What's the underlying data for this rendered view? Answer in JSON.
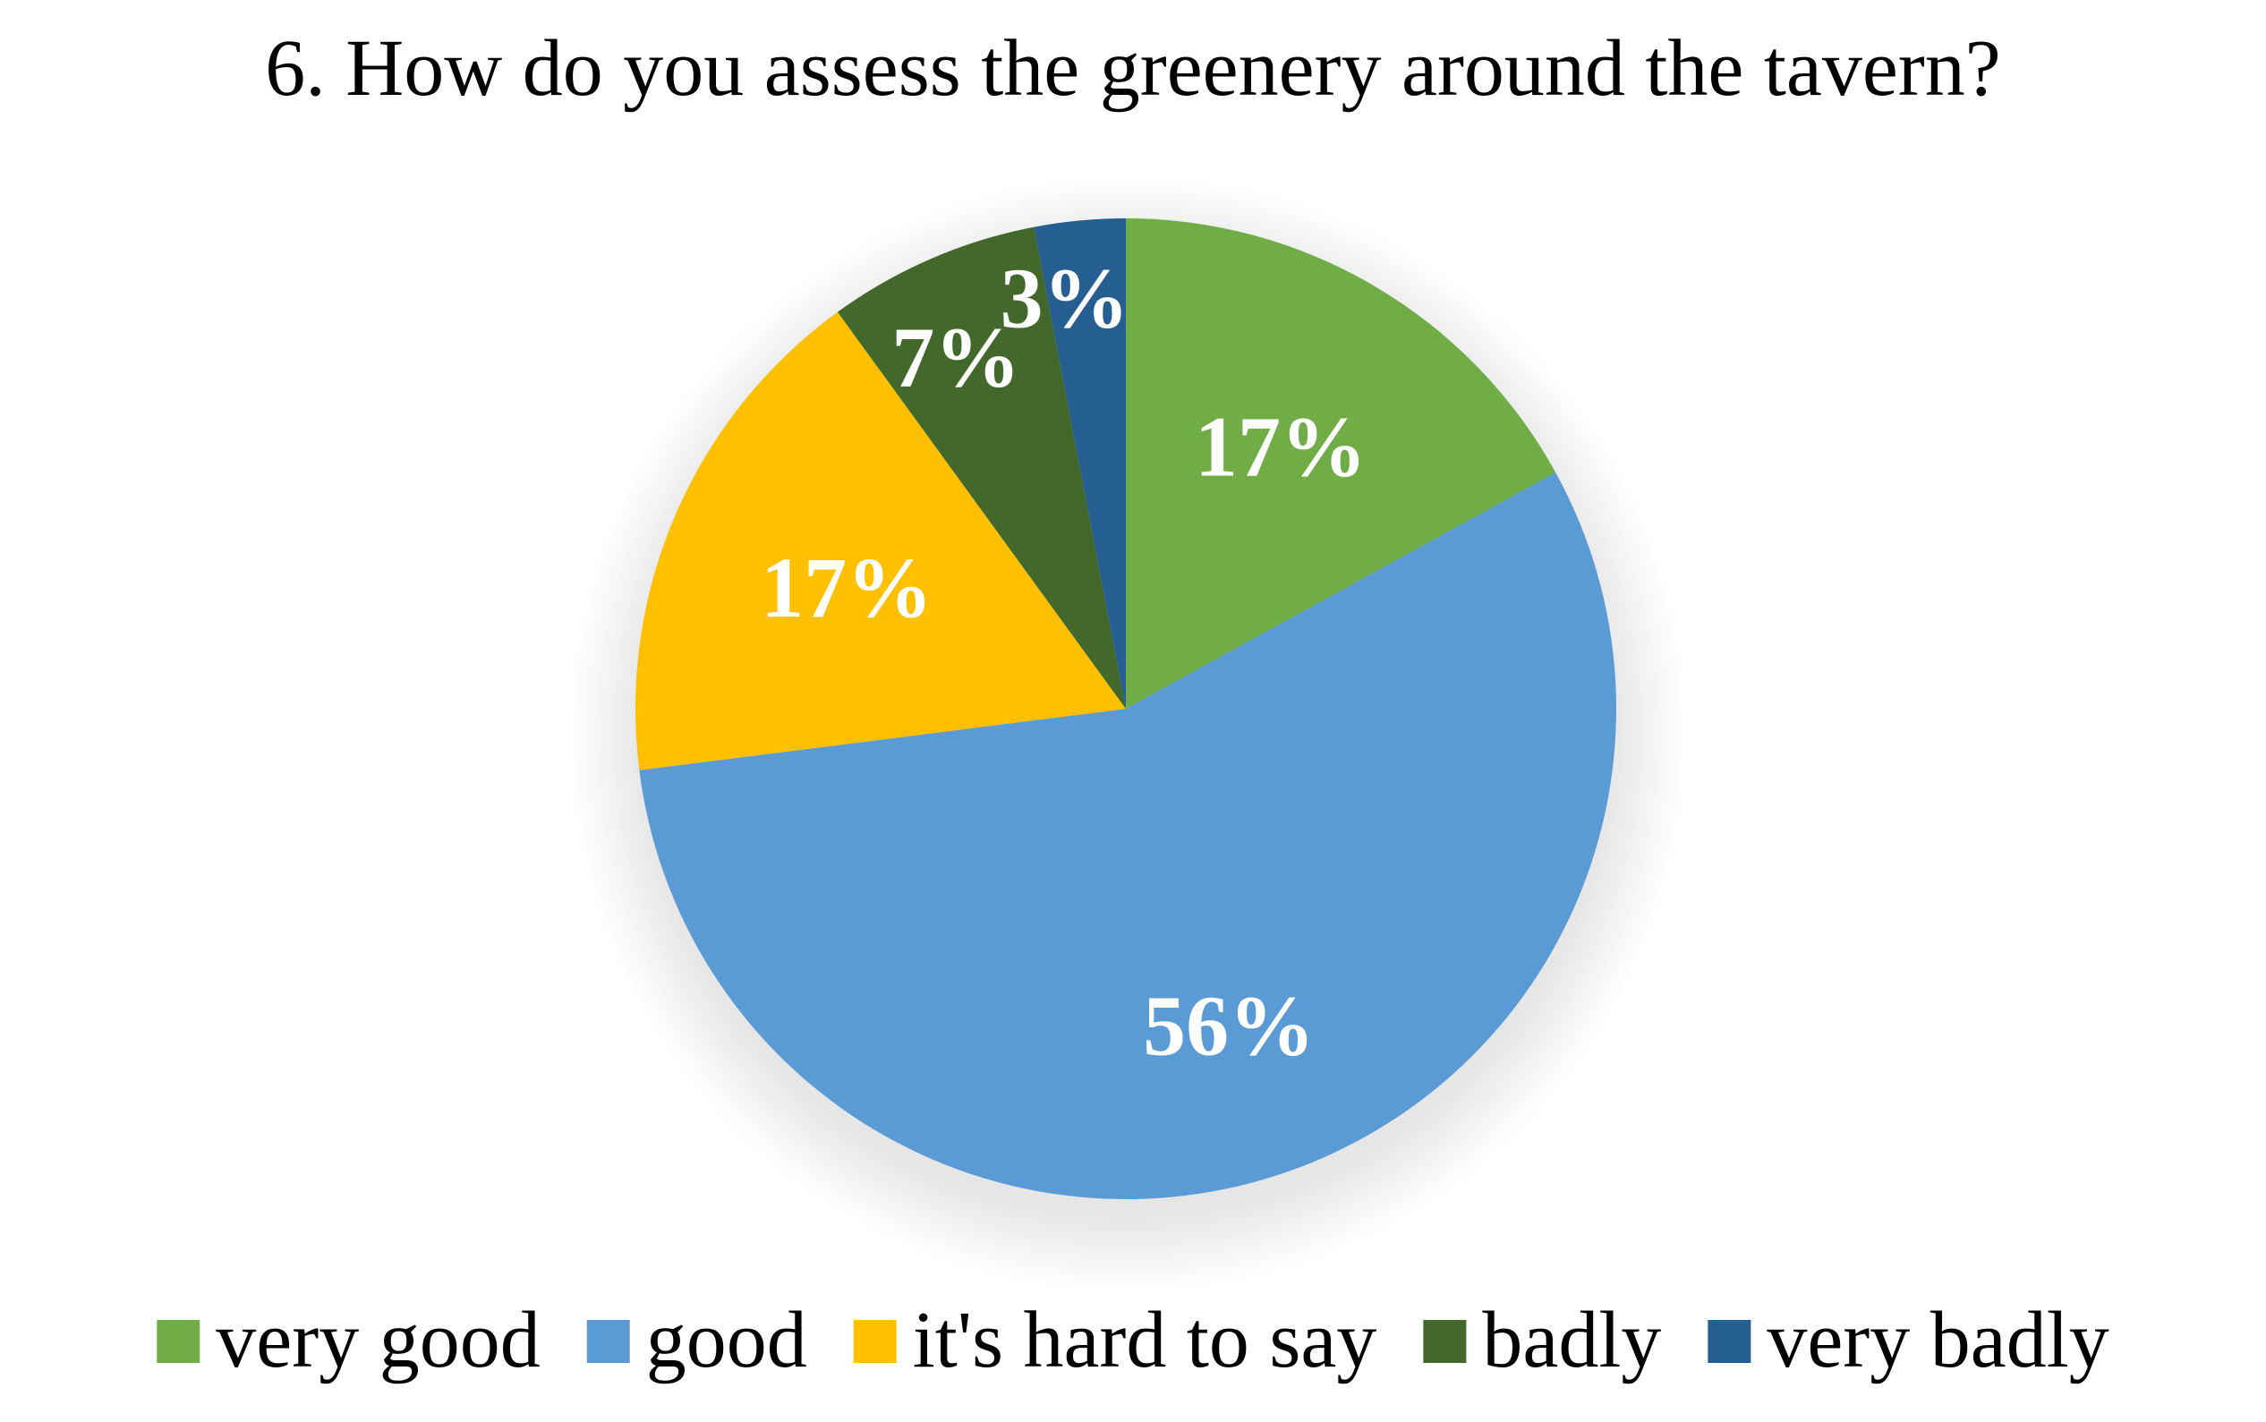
{
  "chart_data": {
    "type": "pie",
    "title": "6. How do you assess the greenery around the tavern?",
    "categories": [
      "very good",
      "good",
      "it's hard to say",
      "badly",
      "very badly"
    ],
    "values": [
      17,
      56,
      17,
      7,
      3
    ],
    "data_labels": [
      "17%",
      "56%",
      "17%",
      "7%",
      "3%"
    ],
    "colors": [
      "#70AD47",
      "#5B9BD5",
      "#FFC000",
      "#43682B",
      "#255E91"
    ],
    "start_angle": "12 o'clock",
    "direction": "clockwise",
    "legend_position": "bottom"
  }
}
